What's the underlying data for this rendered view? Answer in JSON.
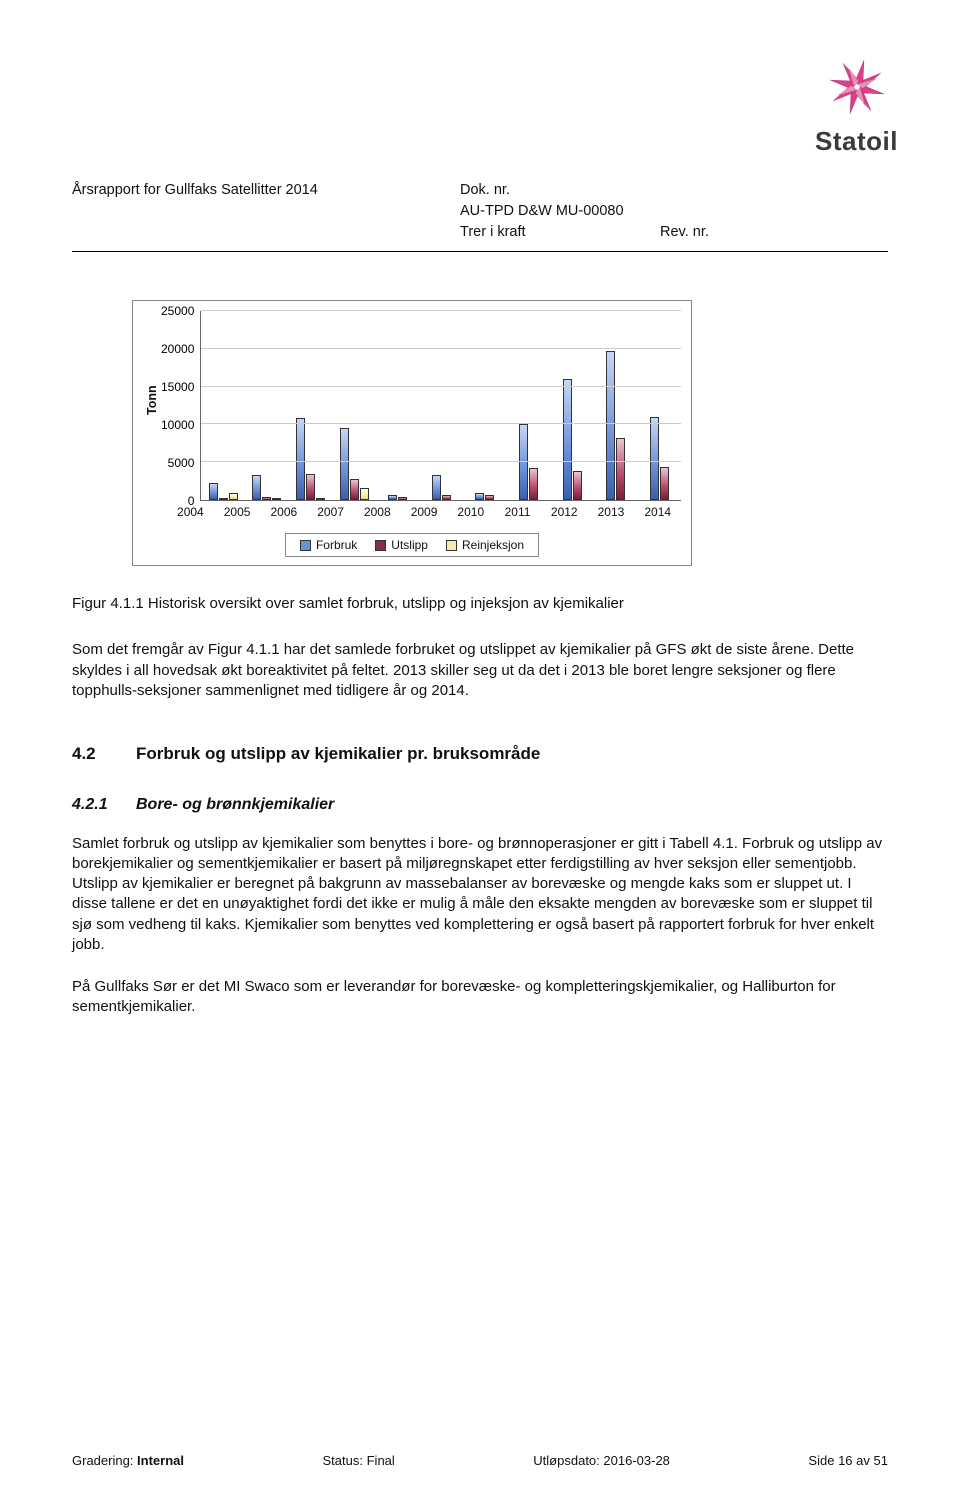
{
  "header": {
    "report_title": "Årsrapport for Gullfaks Satellitter 2014",
    "dok_nr_label": "Dok. nr.",
    "dok_nr_value": "AU-TPD D&W MU-00080",
    "trer_label": "Trer i kraft",
    "rev_label": "Rev. nr.",
    "logo_text": "Statoil"
  },
  "chart": {
    "type": "bar",
    "y_label": "Tonn",
    "y_max": 25000,
    "y_ticks": [
      25000,
      20000,
      15000,
      10000,
      5000,
      0
    ],
    "categories": [
      "2004",
      "2005",
      "2006",
      "2007",
      "2008",
      "2009",
      "2010",
      "2011",
      "2012",
      "2013",
      "2014"
    ],
    "series": [
      {
        "name": "Forbruk",
        "color_class": "b0",
        "values": [
          2200,
          3300,
          10800,
          9500,
          600,
          3300,
          900,
          10100,
          16000,
          19700,
          11000
        ]
      },
      {
        "name": "Utslipp",
        "color_class": "b1",
        "values": [
          300,
          400,
          3400,
          2800,
          400,
          600,
          700,
          4200,
          3800,
          8200,
          4400
        ]
      },
      {
        "name": "Reinjeksjon",
        "color_class": "b2",
        "values": [
          900,
          200,
          200,
          1600,
          0,
          0,
          0,
          0,
          0,
          0,
          0
        ]
      }
    ],
    "legend": [
      "Forbruk",
      "Utslipp",
      "Reinjeksjon"
    ],
    "colors": {
      "grid": "#cccccc",
      "axis": "#666666",
      "series0": "#6b8fd8",
      "series1": "#8a2c47",
      "series2": "#f3eeb0"
    },
    "fontsize_tick": 12,
    "fontsize_ylabel": 12.5
  },
  "caption": "Figur 4.1.1 Historisk oversikt over samlet forbruk, utslipp og injeksjon av kjemikalier",
  "para1": "Som det fremgår av Figur 4.1.1 har det samlede forbruket og utslippet av kjemikalier på GFS økt de siste årene. Dette skyldes i all hovedsak økt boreaktivitet på feltet. 2013 skiller seg ut da det i 2013 ble boret lengre seksjoner og flere topphulls-seksjoner sammenlignet med tidligere år og 2014.",
  "section": {
    "num": "4.2",
    "title": "Forbruk og utslipp av kjemikalier pr. bruksområde"
  },
  "subsection": {
    "num": "4.2.1",
    "title": "Bore- og brønnkjemikalier"
  },
  "para2": "Samlet forbruk og utslipp av kjemikalier som benyttes i bore- og brønnoperasjoner er gitt i Tabell 4.1. Forbruk og utslipp av borekjemikalier og sementkjemikalier er basert på miljøregnskapet etter ferdigstilling av hver seksjon eller sementjobb. Utslipp av kjemikalier er beregnet på bakgrunn av massebalanser av borevæske og mengde kaks som er sluppet ut. I disse tallene er det en unøyaktighet fordi det ikke er mulig å måle den eksakte mengden av borevæske som er sluppet til sjø som vedheng til kaks. Kjemikalier som benyttes ved komplettering er også basert på rapportert forbruk for hver enkelt jobb.",
  "para3": "På Gullfaks Sør er det MI Swaco som er leverandør for borevæske- og kompletteringskjemikalier, og Halliburton for sementkjemikalier.",
  "footer": {
    "grading_label": "Gradering:",
    "grading_value": "Internal",
    "status_label": "Status:",
    "status_value": "Final",
    "expiry_label": "Utløpsdato:",
    "expiry_value": "2016-03-28",
    "page_label": "Side",
    "page_cur": "16",
    "page_sep": "av",
    "page_tot": "51"
  }
}
